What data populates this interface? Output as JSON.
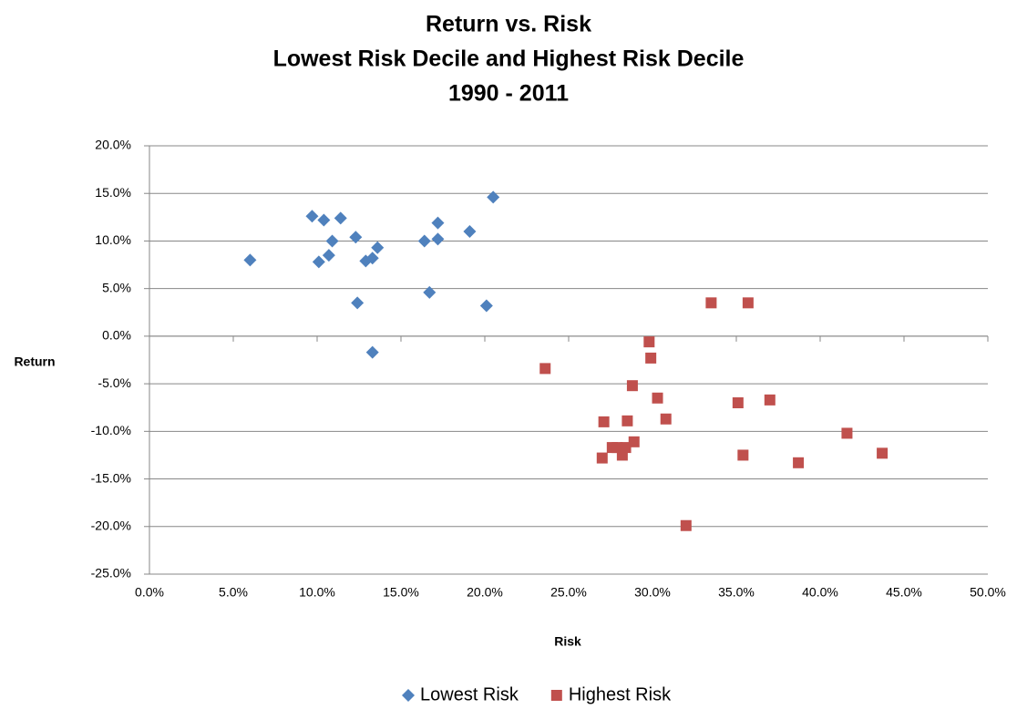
{
  "chart_data": {
    "type": "scatter",
    "title": [
      "Return vs. Risk",
      "Lowest Risk Decile and Highest Risk Decile",
      "1990 - 2011"
    ],
    "x_label": "Risk",
    "y_label": "Return",
    "xlim": [
      0,
      50
    ],
    "ylim": [
      -25,
      20
    ],
    "xticks": [
      {
        "value": 0,
        "label": "0.0%"
      },
      {
        "value": 5,
        "label": "5.0%"
      },
      {
        "value": 10,
        "label": "10.0%"
      },
      {
        "value": 15,
        "label": "15.0%"
      },
      {
        "value": 20,
        "label": "20.0%"
      },
      {
        "value": 25,
        "label": "25.0%"
      },
      {
        "value": 30,
        "label": "30.0%"
      },
      {
        "value": 35,
        "label": "35.0%"
      },
      {
        "value": 40,
        "label": "40.0%"
      },
      {
        "value": 45,
        "label": "45.0%"
      },
      {
        "value": 50,
        "label": "50.0%"
      }
    ],
    "yticks": [
      {
        "value": 20,
        "label": "20.0%"
      },
      {
        "value": 15,
        "label": "15.0%"
      },
      {
        "value": 10,
        "label": "10.0%"
      },
      {
        "value": 5,
        "label": "5.0%"
      },
      {
        "value": 0,
        "label": "0.0%"
      },
      {
        "value": -5,
        "label": "-5.0%"
      },
      {
        "value": -10,
        "label": "-10.0%"
      },
      {
        "value": -15,
        "label": "-15.0%"
      },
      {
        "value": -20,
        "label": "-20.0%"
      },
      {
        "value": -25,
        "label": "-25.0%"
      }
    ],
    "grid": true,
    "legend": "bottom",
    "series": [
      {
        "name": "Lowest Risk",
        "color": "#4f81bd",
        "marker": "diamond",
        "x": [
          6.0,
          9.7,
          10.4,
          11.4,
          10.9,
          10.7,
          10.1,
          12.3,
          12.4,
          12.9,
          13.3,
          13.6,
          13.3,
          16.4,
          16.7,
          17.2,
          17.2,
          19.1,
          20.1,
          20.5
        ],
        "values": [
          8.0,
          12.6,
          12.2,
          12.4,
          10.0,
          8.5,
          7.8,
          10.4,
          3.5,
          7.9,
          8.2,
          9.3,
          -1.7,
          10.0,
          4.6,
          11.9,
          10.2,
          11.0,
          3.2,
          14.6
        ]
      },
      {
        "name": "Highest Risk",
        "color": "#c0504d",
        "marker": "square",
        "x": [
          23.6,
          27.0,
          27.1,
          27.6,
          27.9,
          28.2,
          28.4,
          28.5,
          28.8,
          28.9,
          29.8,
          29.9,
          30.3,
          30.8,
          32.0,
          33.5,
          35.1,
          35.7,
          35.4,
          37.0,
          38.7,
          41.6,
          43.7
        ],
        "values": [
          -3.4,
          -12.8,
          -9.0,
          -11.7,
          -11.7,
          -12.5,
          -11.7,
          -8.9,
          -5.2,
          -11.1,
          -0.6,
          -2.3,
          -6.5,
          -8.7,
          -19.9,
          3.5,
          -7.0,
          3.5,
          -12.5,
          -6.7,
          -13.3,
          -10.2,
          -12.3
        ]
      }
    ]
  }
}
